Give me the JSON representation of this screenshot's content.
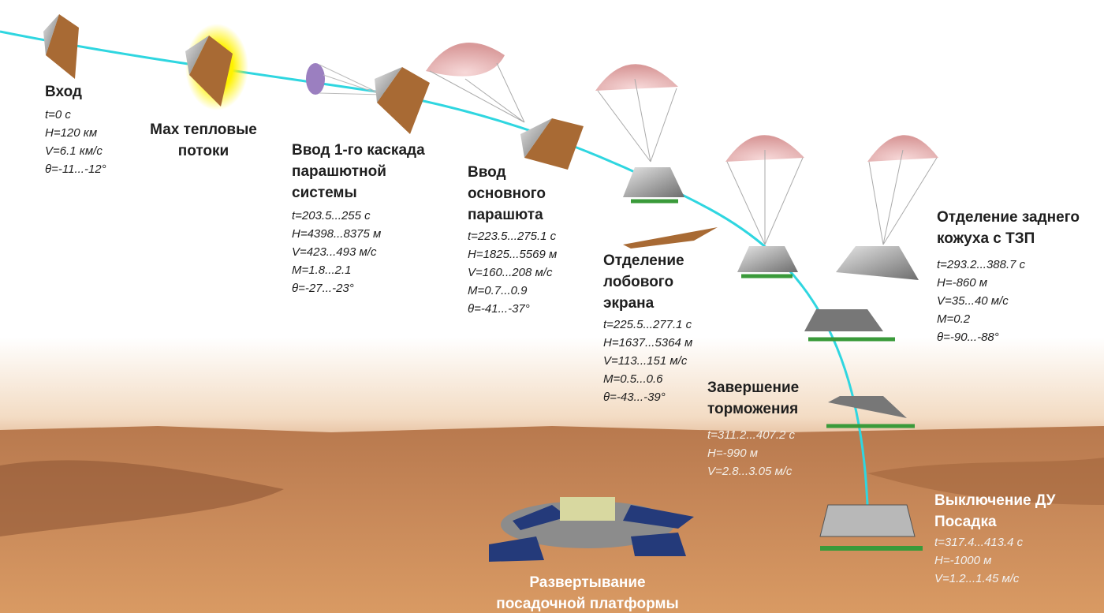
{
  "stages": [
    {
      "title": [
        "Вход"
      ],
      "params": [
        "t=0 с",
        "H=120 км",
        "V=6.1 км/с",
        "θ=-11...-12°"
      ]
    },
    {
      "title": [
        "Мах тепловые",
        "потоки"
      ],
      "params": []
    },
    {
      "title": [
        "Ввод 1-го каскада",
        "парашютной",
        "системы"
      ],
      "params": [
        "t=203.5...255 с",
        "H=4398...8375 м",
        "V=423...493 м/с",
        "M=1.8...2.1",
        "θ=-27...-23°"
      ]
    },
    {
      "title": [
        "Ввод",
        "основного",
        "парашюта"
      ],
      "params": [
        "t=223.5...275.1 с",
        "H=1825...5569 м",
        "V=160...208 м/с",
        "M=0.7...0.9",
        "θ=-41...-37°"
      ]
    },
    {
      "title": [
        "Отделение",
        "лобового",
        "экрана"
      ],
      "params": [
        "t=225.5...277.1 с",
        "H=1637...5364 м",
        "V=113...151 м/с",
        "M=0.5...0.6",
        "θ=-43...-39°"
      ]
    },
    {
      "title": [
        "Отделение заднего",
        "кожуха с ТЗП"
      ],
      "params": [
        "t=293.2...388.7 с",
        "H=-860 м",
        "V=35...40 м/с",
        "M=0.2",
        "θ=-90...-88°"
      ]
    },
    {
      "title": [
        "Завершение",
        "торможения"
      ],
      "params": [
        "t=311.2...407.2 с",
        "H=-990 м",
        "V=2.8...3.05 м/с"
      ]
    },
    {
      "title": [
        "Выключение ДУ",
        "Посадка"
      ],
      "params": [
        "t=317.4...413.4 с",
        "H=-1000 м",
        "V=1.2...1.45 м/с"
      ]
    },
    {
      "title": [
        "Развертывание",
        "посадочной платформы"
      ],
      "params": []
    }
  ]
}
